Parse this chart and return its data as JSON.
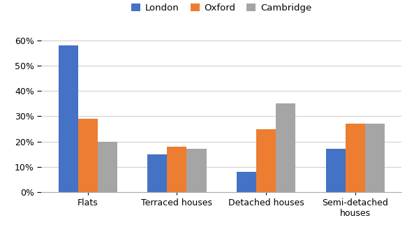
{
  "categories": [
    "Flats",
    "Terraced houses",
    "Detached houses",
    "Semi-detached\nhouses"
  ],
  "series": {
    "London": [
      0.58,
      0.15,
      0.08,
      0.17
    ],
    "Oxford": [
      0.29,
      0.18,
      0.25,
      0.27
    ],
    "Cambridge": [
      0.2,
      0.17,
      0.35,
      0.27
    ]
  },
  "colors": {
    "London": "#4472C4",
    "Oxford": "#ED7D31",
    "Cambridge": "#A5A5A5"
  },
  "legend_labels": [
    "London",
    "Oxford",
    "Cambridge"
  ],
  "ylim": [
    0,
    0.65
  ],
  "yticks": [
    0.0,
    0.1,
    0.2,
    0.3,
    0.4,
    0.5,
    0.6
  ],
  "bar_width": 0.22,
  "background_color": "#FFFFFF",
  "grid_color": "#D0D0D0",
  "tick_fontsize": 9,
  "legend_fontsize": 9.5
}
